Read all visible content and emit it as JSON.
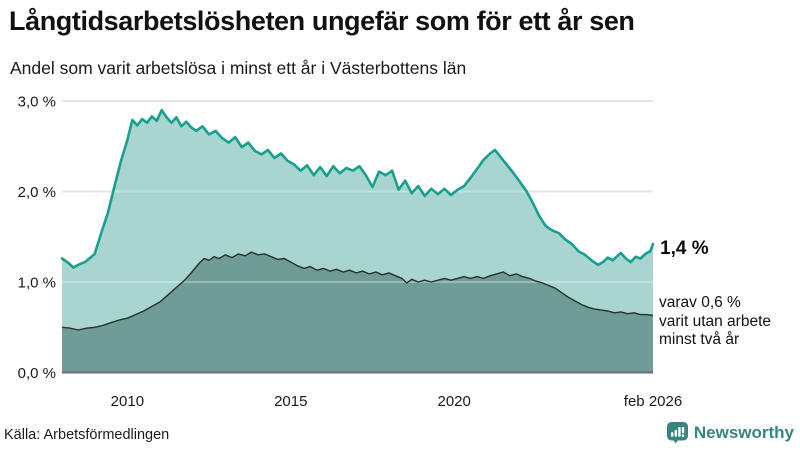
{
  "header": {
    "title": "Långtidsarbetslösheten ungefär som för ett år sen",
    "subtitle": "Andel som varit arbetslösa i minst ett år i Västerbottens län"
  },
  "annotations": {
    "latest_value": "1,4 %",
    "secondary_lines": [
      "varav 0,6 %",
      "varit utan arbete",
      "minst två år"
    ]
  },
  "footer": {
    "source": "Källa: Arbetsförmedlingen"
  },
  "branding": {
    "name": "Newsworthy",
    "color": "#38847e"
  },
  "colors": {
    "background": "#ffffff",
    "gridline": "#e4e4ec",
    "axis_line": "#6e6e6e",
    "tick_text": "#1a1a1a",
    "title_text": "#111111"
  },
  "chart_data": {
    "type": "area",
    "title": "Andel som varit arbetslösa i minst ett år i Västerbottens län",
    "unit": "%",
    "x_axis": {
      "range": [
        2008.0,
        2026.083
      ],
      "ticks": [
        {
          "label": "2010",
          "year": 2010
        },
        {
          "label": "2015",
          "year": 2015
        },
        {
          "label": "2020",
          "year": 2020
        },
        {
          "label": "feb 2026",
          "year": 2026.083
        }
      ]
    },
    "y_axis": {
      "range": [
        0,
        3
      ],
      "ticks": [
        {
          "label": "0,0 %",
          "value": 0
        },
        {
          "label": "1,0 %",
          "value": 1
        },
        {
          "label": "2,0 %",
          "value": 2
        },
        {
          "label": "3,0 %",
          "value": 3
        }
      ]
    },
    "gridlines": [
      1,
      2,
      3
    ],
    "series": [
      {
        "name": "Arbetslösa minst ett år",
        "latest_value_label": "1,4 %",
        "line_color": "#17a090",
        "fill_color": "#a8d5cf",
        "line_width": 2.6,
        "points": [
          [
            2008.0,
            1.26
          ],
          [
            2008.2,
            1.21
          ],
          [
            2008.35,
            1.16
          ],
          [
            2008.5,
            1.19
          ],
          [
            2008.7,
            1.22
          ],
          [
            2008.9,
            1.28
          ],
          [
            2009.0,
            1.31
          ],
          [
            2009.2,
            1.54
          ],
          [
            2009.4,
            1.76
          ],
          [
            2009.6,
            2.05
          ],
          [
            2009.8,
            2.33
          ],
          [
            2010.0,
            2.57
          ],
          [
            2010.15,
            2.79
          ],
          [
            2010.3,
            2.73
          ],
          [
            2010.45,
            2.8
          ],
          [
            2010.6,
            2.76
          ],
          [
            2010.75,
            2.83
          ],
          [
            2010.9,
            2.78
          ],
          [
            2011.05,
            2.9
          ],
          [
            2011.2,
            2.82
          ],
          [
            2011.35,
            2.76
          ],
          [
            2011.5,
            2.82
          ],
          [
            2011.65,
            2.72
          ],
          [
            2011.8,
            2.77
          ],
          [
            2011.95,
            2.71
          ],
          [
            2012.1,
            2.67
          ],
          [
            2012.3,
            2.72
          ],
          [
            2012.5,
            2.63
          ],
          [
            2012.7,
            2.67
          ],
          [
            2012.9,
            2.59
          ],
          [
            2013.1,
            2.54
          ],
          [
            2013.3,
            2.6
          ],
          [
            2013.5,
            2.49
          ],
          [
            2013.7,
            2.54
          ],
          [
            2013.9,
            2.45
          ],
          [
            2014.1,
            2.41
          ],
          [
            2014.3,
            2.46
          ],
          [
            2014.5,
            2.37
          ],
          [
            2014.7,
            2.42
          ],
          [
            2014.9,
            2.34
          ],
          [
            2015.1,
            2.3
          ],
          [
            2015.3,
            2.23
          ],
          [
            2015.5,
            2.29
          ],
          [
            2015.7,
            2.18
          ],
          [
            2015.9,
            2.27
          ],
          [
            2016.1,
            2.17
          ],
          [
            2016.3,
            2.28
          ],
          [
            2016.5,
            2.2
          ],
          [
            2016.7,
            2.26
          ],
          [
            2016.9,
            2.23
          ],
          [
            2017.1,
            2.28
          ],
          [
            2017.3,
            2.18
          ],
          [
            2017.5,
            2.05
          ],
          [
            2017.7,
            2.22
          ],
          [
            2017.9,
            2.18
          ],
          [
            2018.1,
            2.23
          ],
          [
            2018.3,
            2.02
          ],
          [
            2018.5,
            2.12
          ],
          [
            2018.7,
            1.98
          ],
          [
            2018.9,
            2.06
          ],
          [
            2019.1,
            1.95
          ],
          [
            2019.3,
            2.03
          ],
          [
            2019.5,
            1.97
          ],
          [
            2019.7,
            2.03
          ],
          [
            2019.9,
            1.96
          ],
          [
            2020.1,
            2.02
          ],
          [
            2020.3,
            2.06
          ],
          [
            2020.5,
            2.15
          ],
          [
            2020.7,
            2.25
          ],
          [
            2020.9,
            2.35
          ],
          [
            2021.1,
            2.42
          ],
          [
            2021.25,
            2.46
          ],
          [
            2021.4,
            2.39
          ],
          [
            2021.6,
            2.3
          ],
          [
            2021.8,
            2.21
          ],
          [
            2022.0,
            2.11
          ],
          [
            2022.2,
            2.01
          ],
          [
            2022.4,
            1.88
          ],
          [
            2022.6,
            1.73
          ],
          [
            2022.8,
            1.62
          ],
          [
            2023.0,
            1.57
          ],
          [
            2023.2,
            1.54
          ],
          [
            2023.4,
            1.47
          ],
          [
            2023.6,
            1.42
          ],
          [
            2023.8,
            1.34
          ],
          [
            2024.0,
            1.3
          ],
          [
            2024.2,
            1.24
          ],
          [
            2024.4,
            1.19
          ],
          [
            2024.55,
            1.22
          ],
          [
            2024.7,
            1.27
          ],
          [
            2024.85,
            1.24
          ],
          [
            2025.0,
            1.29
          ],
          [
            2025.1,
            1.32
          ],
          [
            2025.25,
            1.26
          ],
          [
            2025.4,
            1.22
          ],
          [
            2025.55,
            1.28
          ],
          [
            2025.7,
            1.26
          ],
          [
            2025.85,
            1.31
          ],
          [
            2026.0,
            1.34
          ],
          [
            2026.083,
            1.42
          ]
        ]
      },
      {
        "name": "Utan arbete minst två år",
        "latest_value_label": "0,6 %",
        "line_color": "#22332f",
        "fill_color": "#6f9c95",
        "line_width": 1.4,
        "points": [
          [
            2008.0,
            0.5
          ],
          [
            2008.25,
            0.49
          ],
          [
            2008.5,
            0.47
          ],
          [
            2008.75,
            0.49
          ],
          [
            2009.0,
            0.5
          ],
          [
            2009.25,
            0.52
          ],
          [
            2009.5,
            0.55
          ],
          [
            2009.75,
            0.58
          ],
          [
            2010.0,
            0.6
          ],
          [
            2010.25,
            0.64
          ],
          [
            2010.5,
            0.68
          ],
          [
            2010.75,
            0.73
          ],
          [
            2011.0,
            0.78
          ],
          [
            2011.25,
            0.86
          ],
          [
            2011.5,
            0.94
          ],
          [
            2011.75,
            1.02
          ],
          [
            2012.0,
            1.12
          ],
          [
            2012.2,
            1.21
          ],
          [
            2012.35,
            1.26
          ],
          [
            2012.5,
            1.24
          ],
          [
            2012.65,
            1.28
          ],
          [
            2012.8,
            1.26
          ],
          [
            2013.0,
            1.3
          ],
          [
            2013.2,
            1.27
          ],
          [
            2013.4,
            1.31
          ],
          [
            2013.6,
            1.29
          ],
          [
            2013.8,
            1.33
          ],
          [
            2014.0,
            1.3
          ],
          [
            2014.2,
            1.31
          ],
          [
            2014.4,
            1.28
          ],
          [
            2014.6,
            1.25
          ],
          [
            2014.8,
            1.26
          ],
          [
            2015.0,
            1.22
          ],
          [
            2015.2,
            1.18
          ],
          [
            2015.4,
            1.15
          ],
          [
            2015.6,
            1.17
          ],
          [
            2015.8,
            1.13
          ],
          [
            2016.0,
            1.15
          ],
          [
            2016.2,
            1.12
          ],
          [
            2016.4,
            1.14
          ],
          [
            2016.6,
            1.11
          ],
          [
            2016.8,
            1.13
          ],
          [
            2017.0,
            1.1
          ],
          [
            2017.2,
            1.12
          ],
          [
            2017.4,
            1.09
          ],
          [
            2017.6,
            1.11
          ],
          [
            2017.8,
            1.08
          ],
          [
            2018.0,
            1.1
          ],
          [
            2018.2,
            1.07
          ],
          [
            2018.4,
            1.04
          ],
          [
            2018.55,
            0.99
          ],
          [
            2018.7,
            1.03
          ],
          [
            2018.9,
            1.0
          ],
          [
            2019.1,
            1.02
          ],
          [
            2019.3,
            1.0
          ],
          [
            2019.5,
            1.02
          ],
          [
            2019.7,
            1.04
          ],
          [
            2019.9,
            1.02
          ],
          [
            2020.1,
            1.04
          ],
          [
            2020.3,
            1.06
          ],
          [
            2020.5,
            1.04
          ],
          [
            2020.7,
            1.06
          ],
          [
            2020.9,
            1.04
          ],
          [
            2021.1,
            1.07
          ],
          [
            2021.3,
            1.09
          ],
          [
            2021.5,
            1.11
          ],
          [
            2021.7,
            1.07
          ],
          [
            2021.9,
            1.09
          ],
          [
            2022.1,
            1.06
          ],
          [
            2022.3,
            1.04
          ],
          [
            2022.5,
            1.01
          ],
          [
            2022.7,
            0.99
          ],
          [
            2022.9,
            0.96
          ],
          [
            2023.1,
            0.93
          ],
          [
            2023.3,
            0.88
          ],
          [
            2023.5,
            0.83
          ],
          [
            2023.7,
            0.79
          ],
          [
            2023.9,
            0.75
          ],
          [
            2024.1,
            0.72
          ],
          [
            2024.3,
            0.7
          ],
          [
            2024.5,
            0.69
          ],
          [
            2024.7,
            0.68
          ],
          [
            2024.9,
            0.66
          ],
          [
            2025.1,
            0.67
          ],
          [
            2025.3,
            0.65
          ],
          [
            2025.5,
            0.66
          ],
          [
            2025.7,
            0.64
          ],
          [
            2025.9,
            0.64
          ],
          [
            2026.083,
            0.63
          ]
        ]
      }
    ],
    "legend_position": "none",
    "grid": true
  }
}
